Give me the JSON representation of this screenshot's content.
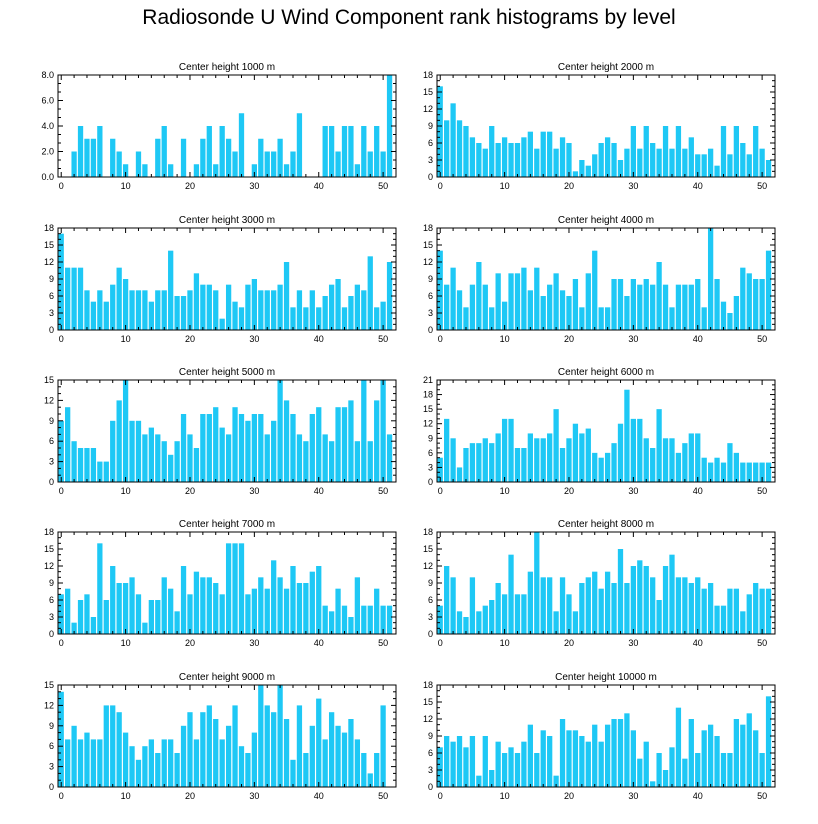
{
  "title": "Radiosonde U Wind Component rank histograms by level",
  "colors": {
    "bar": "#1ec8f5",
    "bar_edge": "#0fb4e6",
    "axis": "#000000",
    "background": "#ffffff"
  },
  "chart_data": [
    {
      "type": "bar",
      "title": "Center height 1000 m",
      "xlabel": "",
      "ylabel": "",
      "x_start": 0,
      "xlim": [
        -0.5,
        52
      ],
      "xticks": [
        0,
        10,
        20,
        30,
        40,
        50
      ],
      "ylim": [
        0,
        8
      ],
      "yticks": [
        0,
        2,
        4,
        6,
        8
      ],
      "ytick_labels": [
        "0.0",
        "2.0",
        "4.0",
        "6.0",
        "8.0"
      ],
      "values": [
        0,
        0,
        2,
        4,
        3,
        3,
        4,
        0,
        3,
        2,
        1,
        0,
        2,
        1,
        0,
        3,
        4,
        1,
        0,
        3,
        0,
        1,
        3,
        4,
        1,
        4,
        3,
        2,
        5,
        0,
        1,
        3,
        2,
        2,
        3,
        1,
        2,
        5,
        0,
        0,
        0,
        4,
        4,
        2,
        4,
        4,
        1,
        4,
        2,
        4,
        2,
        8
      ]
    },
    {
      "type": "bar",
      "title": "Center height 2000 m",
      "xlabel": "",
      "ylabel": "",
      "x_start": 0,
      "xlim": [
        -0.5,
        52
      ],
      "xticks": [
        0,
        10,
        20,
        30,
        40,
        50
      ],
      "ylim": [
        0,
        18
      ],
      "yticks": [
        0,
        3,
        6,
        9,
        12,
        15,
        18
      ],
      "ytick_labels": [
        "0",
        "3",
        "6",
        "9",
        "12",
        "15",
        "18"
      ],
      "values": [
        16,
        10,
        13,
        10,
        9,
        7,
        6,
        5,
        9,
        6,
        7,
        6,
        6,
        7,
        8,
        5,
        8,
        8,
        5,
        7,
        6,
        1,
        3,
        2,
        4,
        6,
        7,
        6,
        3,
        5,
        9,
        5,
        9,
        6,
        5,
        9,
        5,
        9,
        5,
        7,
        4,
        4,
        5,
        2,
        9,
        4,
        9,
        6,
        4,
        9,
        5,
        3
      ]
    },
    {
      "type": "bar",
      "title": "Center height 3000 m",
      "xlabel": "",
      "ylabel": "",
      "x_start": 0,
      "xlim": [
        -0.5,
        52
      ],
      "xticks": [
        0,
        10,
        20,
        30,
        40,
        50
      ],
      "ylim": [
        0,
        18
      ],
      "yticks": [
        0,
        3,
        6,
        9,
        12,
        15,
        18
      ],
      "ytick_labels": [
        "0",
        "3",
        "6",
        "9",
        "12",
        "15",
        "18"
      ],
      "values": [
        17,
        11,
        11,
        11,
        7,
        5,
        7,
        5,
        8,
        11,
        9,
        7,
        7,
        7,
        5,
        7,
        7,
        14,
        6,
        6,
        7,
        10,
        8,
        8,
        7,
        2,
        8,
        5,
        4,
        8,
        9,
        7,
        7,
        7,
        8,
        12,
        4,
        7,
        4,
        7,
        4,
        6,
        8,
        9,
        4,
        6,
        8,
        7,
        13,
        4,
        5,
        12
      ]
    },
    {
      "type": "bar",
      "title": "Center height 4000 m",
      "xlabel": "",
      "ylabel": "",
      "x_start": 0,
      "xlim": [
        -0.5,
        52
      ],
      "xticks": [
        0,
        10,
        20,
        30,
        40,
        50
      ],
      "ylim": [
        0,
        18
      ],
      "yticks": [
        0,
        3,
        6,
        9,
        12,
        15,
        18
      ],
      "ytick_labels": [
        "0",
        "3",
        "6",
        "9",
        "12",
        "15",
        "18"
      ],
      "values": [
        14,
        8,
        11,
        7,
        4,
        8,
        12,
        8,
        4,
        10,
        5,
        10,
        10,
        11,
        7,
        11,
        6,
        8,
        10,
        7,
        6,
        9,
        4,
        10,
        14,
        4,
        4,
        9,
        9,
        6,
        9,
        8,
        9,
        8,
        12,
        8,
        4,
        8,
        8,
        8,
        9,
        4,
        18,
        9,
        5,
        3,
        6,
        11,
        10,
        9,
        9,
        14
      ]
    },
    {
      "type": "bar",
      "title": "Center height 5000 m",
      "xlabel": "",
      "ylabel": "",
      "x_start": 0,
      "xlim": [
        -0.5,
        52
      ],
      "xticks": [
        0,
        10,
        20,
        30,
        40,
        50
      ],
      "ylim": [
        0,
        15
      ],
      "yticks": [
        0,
        3,
        6,
        9,
        12,
        15
      ],
      "ytick_labels": [
        "0",
        "3",
        "6",
        "9",
        "12",
        "15"
      ],
      "values": [
        9,
        11,
        6,
        5,
        5,
        5,
        3,
        3,
        9,
        12,
        15,
        9,
        9,
        7,
        8,
        7,
        6,
        4,
        6,
        10,
        7,
        5,
        10,
        10,
        11,
        8,
        7,
        11,
        10,
        9,
        10,
        10,
        7,
        9,
        15,
        12,
        10,
        7,
        6,
        10,
        11,
        7,
        6,
        11,
        11,
        12,
        6,
        15,
        6,
        12,
        15,
        7
      ]
    },
    {
      "type": "bar",
      "title": "Center height 6000 m",
      "xlabel": "",
      "ylabel": "",
      "x_start": 0,
      "xlim": [
        -0.5,
        52
      ],
      "xticks": [
        0,
        10,
        20,
        30,
        40,
        50
      ],
      "ylim": [
        0,
        21
      ],
      "yticks": [
        0,
        3,
        6,
        9,
        12,
        15,
        18,
        21
      ],
      "ytick_labels": [
        "0",
        "3",
        "6",
        "9",
        "12",
        "15",
        "18",
        "21"
      ],
      "values": [
        5,
        13,
        9,
        3,
        7,
        8,
        8,
        9,
        8,
        10,
        13,
        13,
        7,
        7,
        10,
        9,
        9,
        10,
        15,
        7,
        9,
        12,
        10,
        11,
        6,
        5,
        6,
        8,
        12,
        19,
        13,
        13,
        9,
        7,
        15,
        9,
        9,
        6,
        8,
        10,
        10,
        5,
        4,
        5,
        4,
        8,
        6,
        4,
        4,
        4,
        4,
        4
      ]
    },
    {
      "type": "bar",
      "title": "Center height 7000 m",
      "xlabel": "",
      "ylabel": "",
      "x_start": 0,
      "xlim": [
        -0.5,
        52
      ],
      "xticks": [
        0,
        10,
        20,
        30,
        40,
        50
      ],
      "ylim": [
        0,
        18
      ],
      "yticks": [
        0,
        3,
        6,
        9,
        12,
        15,
        18
      ],
      "ytick_labels": [
        "0",
        "3",
        "6",
        "9",
        "12",
        "15",
        "18"
      ],
      "values": [
        7,
        8,
        2,
        6,
        7,
        3,
        16,
        6,
        12,
        9,
        9,
        10,
        7,
        2,
        6,
        6,
        10,
        8,
        4,
        12,
        7,
        11,
        10,
        10,
        9,
        7,
        16,
        16,
        16,
        7,
        8,
        10,
        8,
        13,
        10,
        8,
        12,
        9,
        9,
        11,
        12,
        5,
        4,
        8,
        5,
        3,
        10,
        5,
        5,
        8,
        5,
        5
      ]
    },
    {
      "type": "bar",
      "title": "Center height 8000 m",
      "xlabel": "",
      "ylabel": "",
      "x_start": 0,
      "xlim": [
        -0.5,
        52
      ],
      "xticks": [
        0,
        10,
        20,
        30,
        40,
        50
      ],
      "ylim": [
        0,
        18
      ],
      "yticks": [
        0,
        3,
        6,
        9,
        12,
        15,
        18
      ],
      "ytick_labels": [
        "0",
        "3",
        "6",
        "9",
        "12",
        "15",
        "18"
      ],
      "values": [
        5,
        12,
        10,
        4,
        3,
        10,
        4,
        5,
        6,
        9,
        7,
        14,
        7,
        7,
        11,
        18,
        10,
        10,
        4,
        10,
        7,
        4,
        9,
        10,
        11,
        8,
        11,
        9,
        15,
        9,
        12,
        13,
        12,
        10,
        6,
        12,
        14,
        10,
        10,
        9,
        10,
        8,
        9,
        5,
        5,
        8,
        8,
        4,
        7,
        9,
        8,
        8
      ]
    },
    {
      "type": "bar",
      "title": "Center height 9000 m",
      "xlabel": "",
      "ylabel": "",
      "x_start": 0,
      "xlim": [
        -0.5,
        52
      ],
      "xticks": [
        0,
        10,
        20,
        30,
        40,
        50
      ],
      "ylim": [
        0,
        15
      ],
      "yticks": [
        0,
        3,
        6,
        9,
        12,
        15
      ],
      "ytick_labels": [
        "0",
        "3",
        "6",
        "9",
        "12",
        "15"
      ],
      "values": [
        14,
        7,
        9,
        7,
        8,
        7,
        7,
        12,
        12,
        11,
        8,
        6,
        4,
        6,
        7,
        5,
        7,
        7,
        5,
        9,
        11,
        7,
        11,
        12,
        10,
        7,
        9,
        12,
        6,
        5,
        8,
        15,
        12,
        11,
        15,
        10,
        4,
        12,
        5,
        9,
        13,
        7,
        11,
        9,
        8,
        10,
        7,
        5,
        2,
        5,
        12,
        0
      ]
    },
    {
      "type": "bar",
      "title": "Center height 10000 m",
      "xlabel": "",
      "ylabel": "",
      "x_start": 0,
      "xlim": [
        -0.5,
        52
      ],
      "xticks": [
        0,
        10,
        20,
        30,
        40,
        50
      ],
      "ylim": [
        0,
        18
      ],
      "yticks": [
        0,
        3,
        6,
        9,
        12,
        15,
        18
      ],
      "ytick_labels": [
        "0",
        "3",
        "6",
        "9",
        "12",
        "15",
        "18"
      ],
      "values": [
        7,
        9,
        8,
        9,
        7,
        9,
        2,
        9,
        3,
        8,
        6,
        7,
        6,
        8,
        11,
        6,
        10,
        9,
        2,
        12,
        10,
        10,
        9,
        8,
        11,
        8,
        11,
        12,
        12,
        13,
        10,
        5,
        8,
        1,
        6,
        3,
        7,
        14,
        5,
        12,
        6,
        10,
        11,
        9,
        6,
        6,
        12,
        11,
        13,
        10,
        6,
        16
      ]
    }
  ]
}
